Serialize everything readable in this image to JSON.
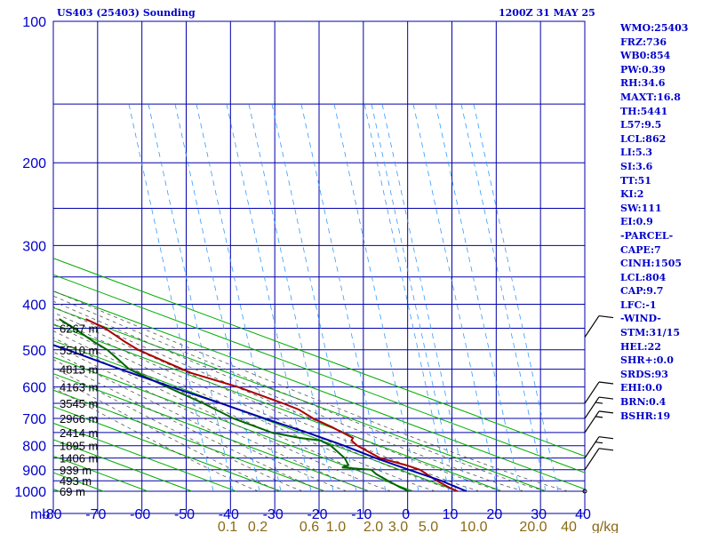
{
  "header": {
    "station": "US403 (25403) Sounding",
    "time": "1200Z 31 MAY 25"
  },
  "indices": [
    "WMO:25403",
    "FRZ:736",
    "WB0:854",
    "PW:0.39",
    "RH:34.6",
    "MAXT:16.8",
    "TH:5441",
    "L57:9.5",
    "LCL:862",
    "LI:5.3",
    "SI:3.6",
    "TT:51",
    "KI:2",
    "SW:111",
    "EI:0.9",
    "-PARCEL-",
    "CAPE:7",
    "CINH:1505",
    "LCL:804",
    "CAP:9.7",
    "LFC:-1",
    "-WIND-",
    "STM:31/15",
    "HEL:22",
    "SHR+:0.0",
    "SRDS:93",
    "EHI:0.0",
    "BRN:0.4",
    "BSHR:19"
  ],
  "colors": {
    "axis_text": "#0000cc",
    "grid": "#0000aa",
    "dry_adiabat": "#00aa00",
    "moist_adiabat": "#555555",
    "mixing_ratio": "#3399ff",
    "temperature": "#aa0000",
    "dewpoint": "#006600",
    "parcel": "#0000aa",
    "mixing_label": "#8b6914",
    "barb": "#000000"
  },
  "chart_data": {
    "type": "line",
    "title": "US403 (25403) Sounding",
    "subtitle": "1200Z 31 MAY 25",
    "pressure_unit": "mb",
    "mixing_unit": "g/kg",
    "pressure_axis": {
      "ticks": [
        100,
        200,
        300,
        400,
        500,
        600,
        700,
        800,
        900,
        1000
      ],
      "range": [
        100,
        1000
      ]
    },
    "temperature_axis": {
      "ticks": [
        -80,
        -70,
        -60,
        -50,
        -40,
        -30,
        -20,
        -10,
        0,
        10,
        20,
        30,
        40
      ],
      "range": [
        -80,
        40
      ]
    },
    "mixing_ratio_labels": [
      "0.1",
      "0.2",
      "0.6",
      "1.0",
      "2.0",
      "3.0",
      "5.0",
      "10.0",
      "20.0",
      "40"
    ],
    "height_labels": [
      {
        "p": 1000,
        "label": "69 m"
      },
      {
        "p": 950,
        "label": "493 m"
      },
      {
        "p": 900,
        "label": "939 m"
      },
      {
        "p": 850,
        "label": "1406 m"
      },
      {
        "p": 800,
        "label": "1895 m"
      },
      {
        "p": 750,
        "label": "2414 m"
      },
      {
        "p": 700,
        "label": "2966 m"
      },
      {
        "p": 650,
        "label": "3545 m"
      },
      {
        "p": 600,
        "label": "4163 m"
      },
      {
        "p": 550,
        "label": "4813 m"
      },
      {
        "p": 500,
        "label": "5510 m"
      },
      {
        "p": 450,
        "label": "6267 m"
      }
    ],
    "series": [
      {
        "name": "temperature",
        "points": [
          [
            1000,
            10
          ],
          [
            980,
            9
          ],
          [
            950,
            8
          ],
          [
            900,
            7
          ],
          [
            880,
            5
          ],
          [
            850,
            1
          ],
          [
            800,
            -1
          ],
          [
            780,
            -1
          ],
          [
            770,
            0
          ],
          [
            750,
            -1
          ],
          [
            730,
            -2
          ],
          [
            700,
            -4
          ],
          [
            670,
            -5
          ],
          [
            650,
            -7
          ],
          [
            600,
            -13
          ],
          [
            560,
            -20
          ],
          [
            530,
            -23
          ],
          [
            500,
            -26
          ],
          [
            480,
            -27
          ],
          [
            450,
            -28
          ],
          [
            430,
            -30
          ]
        ]
      },
      {
        "name": "dewpoint",
        "points": [
          [
            1000,
            -1
          ],
          [
            980,
            -2
          ],
          [
            950,
            -3
          ],
          [
            920,
            -4
          ],
          [
            900,
            -4
          ],
          [
            890,
            -10
          ],
          [
            880,
            -8
          ],
          [
            850,
            -7
          ],
          [
            800,
            -7
          ],
          [
            780,
            -8
          ],
          [
            770,
            -12
          ],
          [
            750,
            -17
          ],
          [
            700,
            -22
          ],
          [
            650,
            -25
          ],
          [
            600,
            -29
          ],
          [
            550,
            -33
          ],
          [
            520,
            -33
          ],
          [
            500,
            -33
          ],
          [
            480,
            -34
          ],
          [
            450,
            -35
          ],
          [
            430,
            -36
          ]
        ]
      },
      {
        "name": "parcel",
        "points": [
          [
            1000,
            12
          ],
          [
            950,
            9
          ],
          [
            900,
            4.5
          ],
          [
            850,
            0
          ],
          [
            800,
            -4
          ],
          [
            750,
            -9
          ],
          [
            700,
            -15
          ],
          [
            650,
            -21
          ],
          [
            600,
            -28
          ],
          [
            550,
            -35
          ],
          [
            500,
            -42
          ],
          [
            450,
            -51
          ],
          [
            400,
            -60
          ],
          [
            350,
            -71
          ],
          [
            300,
            -83
          ],
          [
            250,
            -97
          ],
          [
            220,
            -106
          ]
        ]
      }
    ],
    "wind_barbs": [
      {
        "p": 1000,
        "spd": 0,
        "dir": 0
      },
      {
        "p": 900,
        "spd": 10,
        "dir": 270
      },
      {
        "p": 850,
        "spd": 15,
        "dir": 260
      },
      {
        "p": 750,
        "spd": 15,
        "dir": 255
      },
      {
        "p": 700,
        "spd": 15,
        "dir": 250
      },
      {
        "p": 650,
        "spd": 10,
        "dir": 250
      },
      {
        "p": 470,
        "spd": 10,
        "dir": 250
      }
    ],
    "grid": true
  }
}
